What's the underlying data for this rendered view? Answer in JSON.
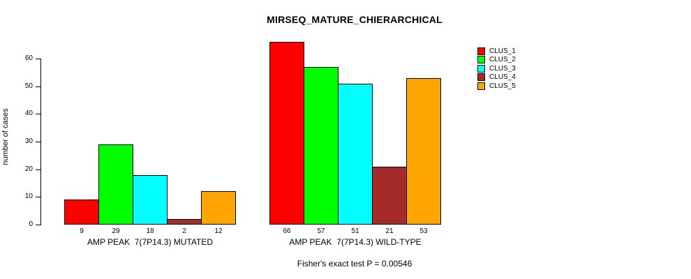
{
  "title": "MIRSEQ_MATURE_CHIERARCHICAL",
  "y_axis": {
    "label": "number of cases",
    "ticks": [
      0,
      10,
      20,
      30,
      40,
      50,
      60
    ]
  },
  "footer": "Fisher's exact test P = 0.00546",
  "chart_data": {
    "type": "bar",
    "title": "MIRSEQ_MATURE_CHIERARCHICAL",
    "xlabel": "",
    "ylabel": "number of cases",
    "ylim": [
      0,
      66
    ],
    "yticks": [
      0,
      10,
      20,
      30,
      40,
      50,
      60
    ],
    "grid": false,
    "bar_border_color": "#000000",
    "legend_position": "right-outside-top",
    "categories": [
      "AMP PEAK  7(7P14.3) MUTATED",
      "AMP PEAK  7(7P14.3) WILD-TYPE"
    ],
    "series": [
      {
        "name": "CLUS_1",
        "color": "#FF0000",
        "values": [
          9,
          66
        ]
      },
      {
        "name": "CLUS_2",
        "color": "#00FF00",
        "values": [
          29,
          57
        ]
      },
      {
        "name": "CLUS_3",
        "color": "#00FFFF",
        "values": [
          18,
          51
        ]
      },
      {
        "name": "CLUS_4",
        "color": "#A52A2A",
        "values": [
          2,
          21
        ]
      },
      {
        "name": "CLUS_5",
        "color": "#FFA500",
        "values": [
          12,
          53
        ]
      }
    ],
    "bar_value_labels": {
      "AMP PEAK  7(7P14.3) MUTATED": [
        9,
        29,
        18,
        2,
        12
      ],
      "AMP PEAK  7(7P14.3) WILD-TYPE": [
        66,
        57,
        51,
        21,
        53
      ]
    },
    "annotation": "Fisher's exact test P = 0.00546"
  }
}
